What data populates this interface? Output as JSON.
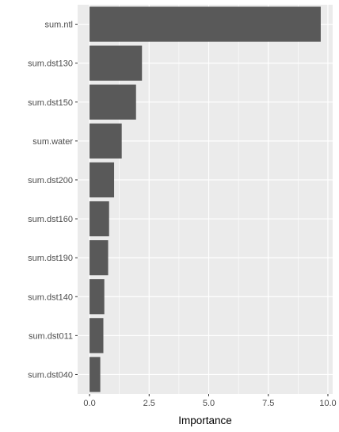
{
  "chart_data": {
    "type": "bar",
    "orientation": "horizontal",
    "categories": [
      "sum.ntl",
      "sum.dst130",
      "sum.dst150",
      "sum.water",
      "sum.dst200",
      "sum.dst160",
      "sum.dst190",
      "sum.dst140",
      "sum.dst011",
      "sum.dst040"
    ],
    "values": [
      9.7,
      2.2,
      1.95,
      1.35,
      1.03,
      0.82,
      0.78,
      0.62,
      0.58,
      0.45
    ],
    "xlabel": "Importance",
    "ylabel": "",
    "title": "",
    "xlim": [
      -0.5,
      10.2
    ],
    "xticks": [
      0,
      2.5,
      5,
      7.5,
      10
    ],
    "xtick_labels": [
      "0.0",
      "2.5",
      "5.0",
      "7.5",
      "10.0"
    ],
    "grid": true,
    "colors": {
      "panel_background": "#ebebeb",
      "grid_major": "#ffffff",
      "bar_fill": "#595959",
      "tick_text": "#4d4d4d",
      "tick_mark": "#333333"
    }
  }
}
